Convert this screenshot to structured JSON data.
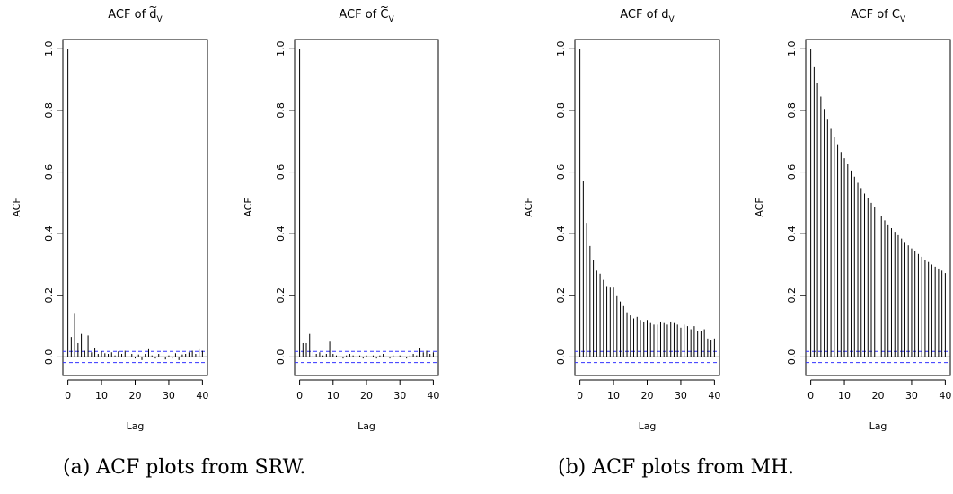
{
  "captions": {
    "a": "(a) ACF plots from SRW.",
    "b": "(b) ACF plots from MH."
  },
  "colors": {
    "bars": "#000000",
    "zero_line": "#000000",
    "confidence_band": "#3333ff"
  },
  "chart_data": [
    {
      "type": "bar",
      "title_main": "ACF of ",
      "title_symbol": "d",
      "title_accent": "~",
      "title_sub": "V",
      "xlabel": "Lag",
      "ylabel": "ACF",
      "xlim": [
        -1.5,
        41.5
      ],
      "ylim": [
        -0.06,
        1.03
      ],
      "x_ticks": [
        0,
        10,
        20,
        30,
        40
      ],
      "y_ticks": [
        0.0,
        0.2,
        0.4,
        0.6,
        0.8,
        1.0
      ],
      "confidence_band": 0.018,
      "lags": [
        0,
        1,
        2,
        3,
        4,
        5,
        6,
        7,
        8,
        9,
        10,
        11,
        12,
        13,
        14,
        15,
        16,
        17,
        18,
        19,
        20,
        21,
        22,
        23,
        24,
        25,
        26,
        27,
        28,
        29,
        30,
        31,
        32,
        33,
        34,
        35,
        36,
        37,
        38,
        39,
        40
      ],
      "values": [
        1.0,
        0.065,
        0.14,
        0.045,
        0.075,
        0.02,
        0.07,
        0.015,
        0.03,
        0.01,
        0.018,
        0.012,
        0.01,
        0.015,
        0.005,
        0.018,
        0.01,
        0.02,
        0.0,
        0.01,
        -0.005,
        0.008,
        -0.01,
        0.01,
        0.025,
        0.005,
        -0.005,
        0.01,
        0.0,
        -0.008,
        0.005,
        -0.005,
        0.012,
        -0.01,
        0.008,
        0.01,
        0.015,
        0.02,
        0.01,
        0.025,
        0.02
      ]
    },
    {
      "type": "bar",
      "title_main": "ACF of ",
      "title_symbol": "C",
      "title_accent": "~",
      "title_sub": "V",
      "xlabel": "Lag",
      "ylabel": "ACF",
      "xlim": [
        -1.5,
        41.5
      ],
      "ylim": [
        -0.06,
        1.03
      ],
      "x_ticks": [
        0,
        10,
        20,
        30,
        40
      ],
      "y_ticks": [
        0.0,
        0.2,
        0.4,
        0.6,
        0.8,
        1.0
      ],
      "confidence_band": 0.018,
      "lags": [
        0,
        1,
        2,
        3,
        4,
        5,
        6,
        7,
        8,
        9,
        10,
        11,
        12,
        13,
        14,
        15,
        16,
        17,
        18,
        19,
        20,
        21,
        22,
        23,
        24,
        25,
        26,
        27,
        28,
        29,
        30,
        31,
        32,
        33,
        34,
        35,
        36,
        37,
        38,
        39,
        40
      ],
      "values": [
        1.0,
        0.045,
        0.045,
        0.075,
        0.02,
        0.01,
        0.015,
        0.005,
        0.01,
        0.05,
        0.01,
        0.005,
        0.0,
        -0.005,
        0.005,
        0.01,
        0.005,
        0.0,
        0.005,
        -0.005,
        0.005,
        0.0,
        0.005,
        -0.005,
        0.005,
        0.01,
        0.0,
        -0.005,
        0.005,
        0.0,
        0.005,
        0.0,
        -0.005,
        0.005,
        0.01,
        0.005,
        0.03,
        0.015,
        0.02,
        0.01,
        0.015
      ]
    },
    {
      "type": "bar",
      "title_main": "ACF of ",
      "title_symbol": "d",
      "title_accent": "",
      "title_sub": "V",
      "xlabel": "Lag",
      "ylabel": "ACF",
      "xlim": [
        -1.5,
        41.5
      ],
      "ylim": [
        -0.06,
        1.03
      ],
      "x_ticks": [
        0,
        10,
        20,
        30,
        40
      ],
      "y_ticks": [
        0.0,
        0.2,
        0.4,
        0.6,
        0.8,
        1.0
      ],
      "confidence_band": 0.018,
      "lags": [
        0,
        1,
        2,
        3,
        4,
        5,
        6,
        7,
        8,
        9,
        10,
        11,
        12,
        13,
        14,
        15,
        16,
        17,
        18,
        19,
        20,
        21,
        22,
        23,
        24,
        25,
        26,
        27,
        28,
        29,
        30,
        31,
        32,
        33,
        34,
        35,
        36,
        37,
        38,
        39,
        40
      ],
      "values": [
        1.0,
        0.57,
        0.435,
        0.36,
        0.315,
        0.28,
        0.27,
        0.25,
        0.23,
        0.225,
        0.225,
        0.2,
        0.18,
        0.165,
        0.145,
        0.135,
        0.125,
        0.13,
        0.12,
        0.115,
        0.12,
        0.11,
        0.105,
        0.105,
        0.115,
        0.11,
        0.105,
        0.115,
        0.11,
        0.105,
        0.095,
        0.105,
        0.1,
        0.09,
        0.1,
        0.085,
        0.085,
        0.09,
        0.06,
        0.055,
        0.06
      ]
    },
    {
      "type": "bar",
      "title_main": "ACF of ",
      "title_symbol": "C",
      "title_accent": "",
      "title_sub": "V",
      "xlabel": "Lag",
      "ylabel": "ACF",
      "xlim": [
        -1.5,
        41.5
      ],
      "ylim": [
        -0.06,
        1.03
      ],
      "x_ticks": [
        0,
        10,
        20,
        30,
        40
      ],
      "y_ticks": [
        0.0,
        0.2,
        0.4,
        0.6,
        0.8,
        1.0
      ],
      "confidence_band": 0.018,
      "lags": [
        0,
        1,
        2,
        3,
        4,
        5,
        6,
        7,
        8,
        9,
        10,
        11,
        12,
        13,
        14,
        15,
        16,
        17,
        18,
        19,
        20,
        21,
        22,
        23,
        24,
        25,
        26,
        27,
        28,
        29,
        30,
        31,
        32,
        33,
        34,
        35,
        36,
        37,
        38,
        39,
        40
      ],
      "values": [
        1.0,
        0.94,
        0.89,
        0.845,
        0.805,
        0.77,
        0.74,
        0.715,
        0.69,
        0.665,
        0.645,
        0.625,
        0.605,
        0.585,
        0.565,
        0.548,
        0.53,
        0.515,
        0.5,
        0.485,
        0.47,
        0.456,
        0.443,
        0.43,
        0.418,
        0.406,
        0.395,
        0.384,
        0.373,
        0.362,
        0.352,
        0.343,
        0.334,
        0.325,
        0.316,
        0.308,
        0.3,
        0.293,
        0.287,
        0.28,
        0.272
      ]
    }
  ]
}
